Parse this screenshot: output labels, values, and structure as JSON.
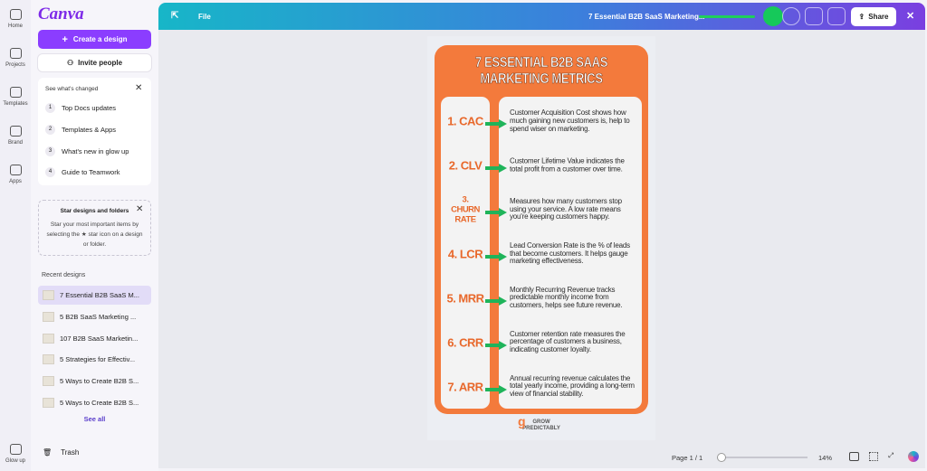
{
  "rail": {
    "items": [
      "Home",
      "Projects",
      "Templates",
      "Brand",
      "Apps"
    ],
    "bottom": "Glow up"
  },
  "panel": {
    "logo": "Canva",
    "create_button": "Create a design",
    "invite_button": "Invite people",
    "whats_changed": {
      "title": "See what's changed",
      "items": [
        {
          "number": "1",
          "label": "Top Docs updates"
        },
        {
          "number": "2",
          "label": "Templates & Apps"
        },
        {
          "number": "3",
          "label": "What's new in glow up"
        },
        {
          "number": "4",
          "label": "Guide to Teamwork"
        }
      ]
    },
    "star_card": {
      "title": "Star designs and folders",
      "text": "Star your most important items by selecting the ★ star icon on a design or folder."
    },
    "recent": {
      "title": "Recent designs",
      "items": [
        "7 Essential B2B SaaS M...",
        "5 B2B SaaS Marketing ...",
        "107 B2B SaaS Marketin...",
        "5 Strategies for Effectiv...",
        "5 Ways to Create B2B S...",
        "5 Ways to Create B2B S..."
      ],
      "see_all": "See all"
    },
    "trash": "Trash"
  },
  "topbar": {
    "file": "File",
    "design_title": "7 Essential B2B SaaS Marketing...",
    "share": "Share"
  },
  "infographic": {
    "title": [
      "7 ESSENTIAL B2B SAAS",
      "MARKETING METRICS"
    ],
    "metrics": [
      {
        "label": "1. CAC",
        "description": "Customer Acquisition Cost shows how much gaining new customers is, help to spend wiser on marketing."
      },
      {
        "label": "2. CLV",
        "description": "Customer Lifetime Value indicates the total profit from a customer over time."
      },
      {
        "label": "3. CHURN RATE",
        "description": "Measures how many customers stop using your service. A low rate means you're keeping customers happy."
      },
      {
        "label": "4. LCR",
        "description": "Lead Conversion Rate is the % of leads that become customers. It helps gauge marketing effectiveness."
      },
      {
        "label": "5. MRR",
        "description": "Monthly Recurring Revenue tracks predictable monthly income from customers, helps see future revenue."
      },
      {
        "label": "6. CRR",
        "description": "Customer retention rate measures the percentage of customers a business, indicating customer loyalty."
      },
      {
        "label": "7. ARR",
        "description": "Annual recurring revenue calculates the total yearly income, providing a long-term view of financial stability."
      }
    ],
    "brand": [
      "GROW",
      "PREDICTABLY"
    ]
  },
  "footer": {
    "page": "Page 1 / 1",
    "zoom": "14%"
  }
}
